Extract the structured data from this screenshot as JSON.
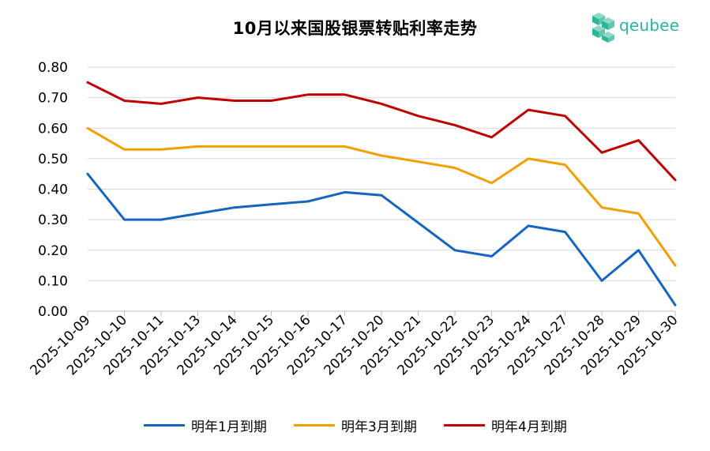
{
  "chart_data": {
    "type": "line",
    "title": "10月以来国股银票转贴利率走势",
    "xlabel": "",
    "ylabel": "",
    "ylim": [
      0,
      0.8
    ],
    "yticks": [
      "0.00",
      "0.10",
      "0.20",
      "0.30",
      "0.40",
      "0.50",
      "0.60",
      "0.70",
      "0.80"
    ],
    "grid": true,
    "legend_position": "bottom",
    "categories": [
      "2025-10-09",
      "2025-10-10",
      "2025-10-11",
      "2025-10-13",
      "2025-10-14",
      "2025-10-15",
      "2025-10-16",
      "2025-10-17",
      "2025-10-20",
      "2025-10-21",
      "2025-10-22",
      "2025-10-23",
      "2025-10-24",
      "2025-10-27",
      "2025-10-28",
      "2025-10-29",
      "2025-10-30"
    ],
    "series": [
      {
        "name": "明年1月到期",
        "color": "#1565c0",
        "values": [
          0.45,
          0.3,
          0.3,
          0.32,
          0.34,
          0.35,
          0.36,
          0.39,
          0.38,
          0.29,
          0.2,
          0.18,
          0.28,
          0.26,
          0.1,
          0.2,
          0.02
        ]
      },
      {
        "name": "明年3月到期",
        "color": "#f0a000",
        "values": [
          0.6,
          0.53,
          0.53,
          0.54,
          0.54,
          0.54,
          0.54,
          0.54,
          0.51,
          0.49,
          0.47,
          0.42,
          0.5,
          0.48,
          0.34,
          0.32,
          0.15
        ]
      },
      {
        "name": "明年4月到期",
        "color": "#c00000",
        "values": [
          0.75,
          0.69,
          0.68,
          0.7,
          0.69,
          0.69,
          0.71,
          0.71,
          0.68,
          0.64,
          0.61,
          0.57,
          0.66,
          0.64,
          0.52,
          0.56,
          0.43
        ]
      }
    ]
  },
  "logo": {
    "text": "qeubee",
    "color": "#2bb59a"
  }
}
